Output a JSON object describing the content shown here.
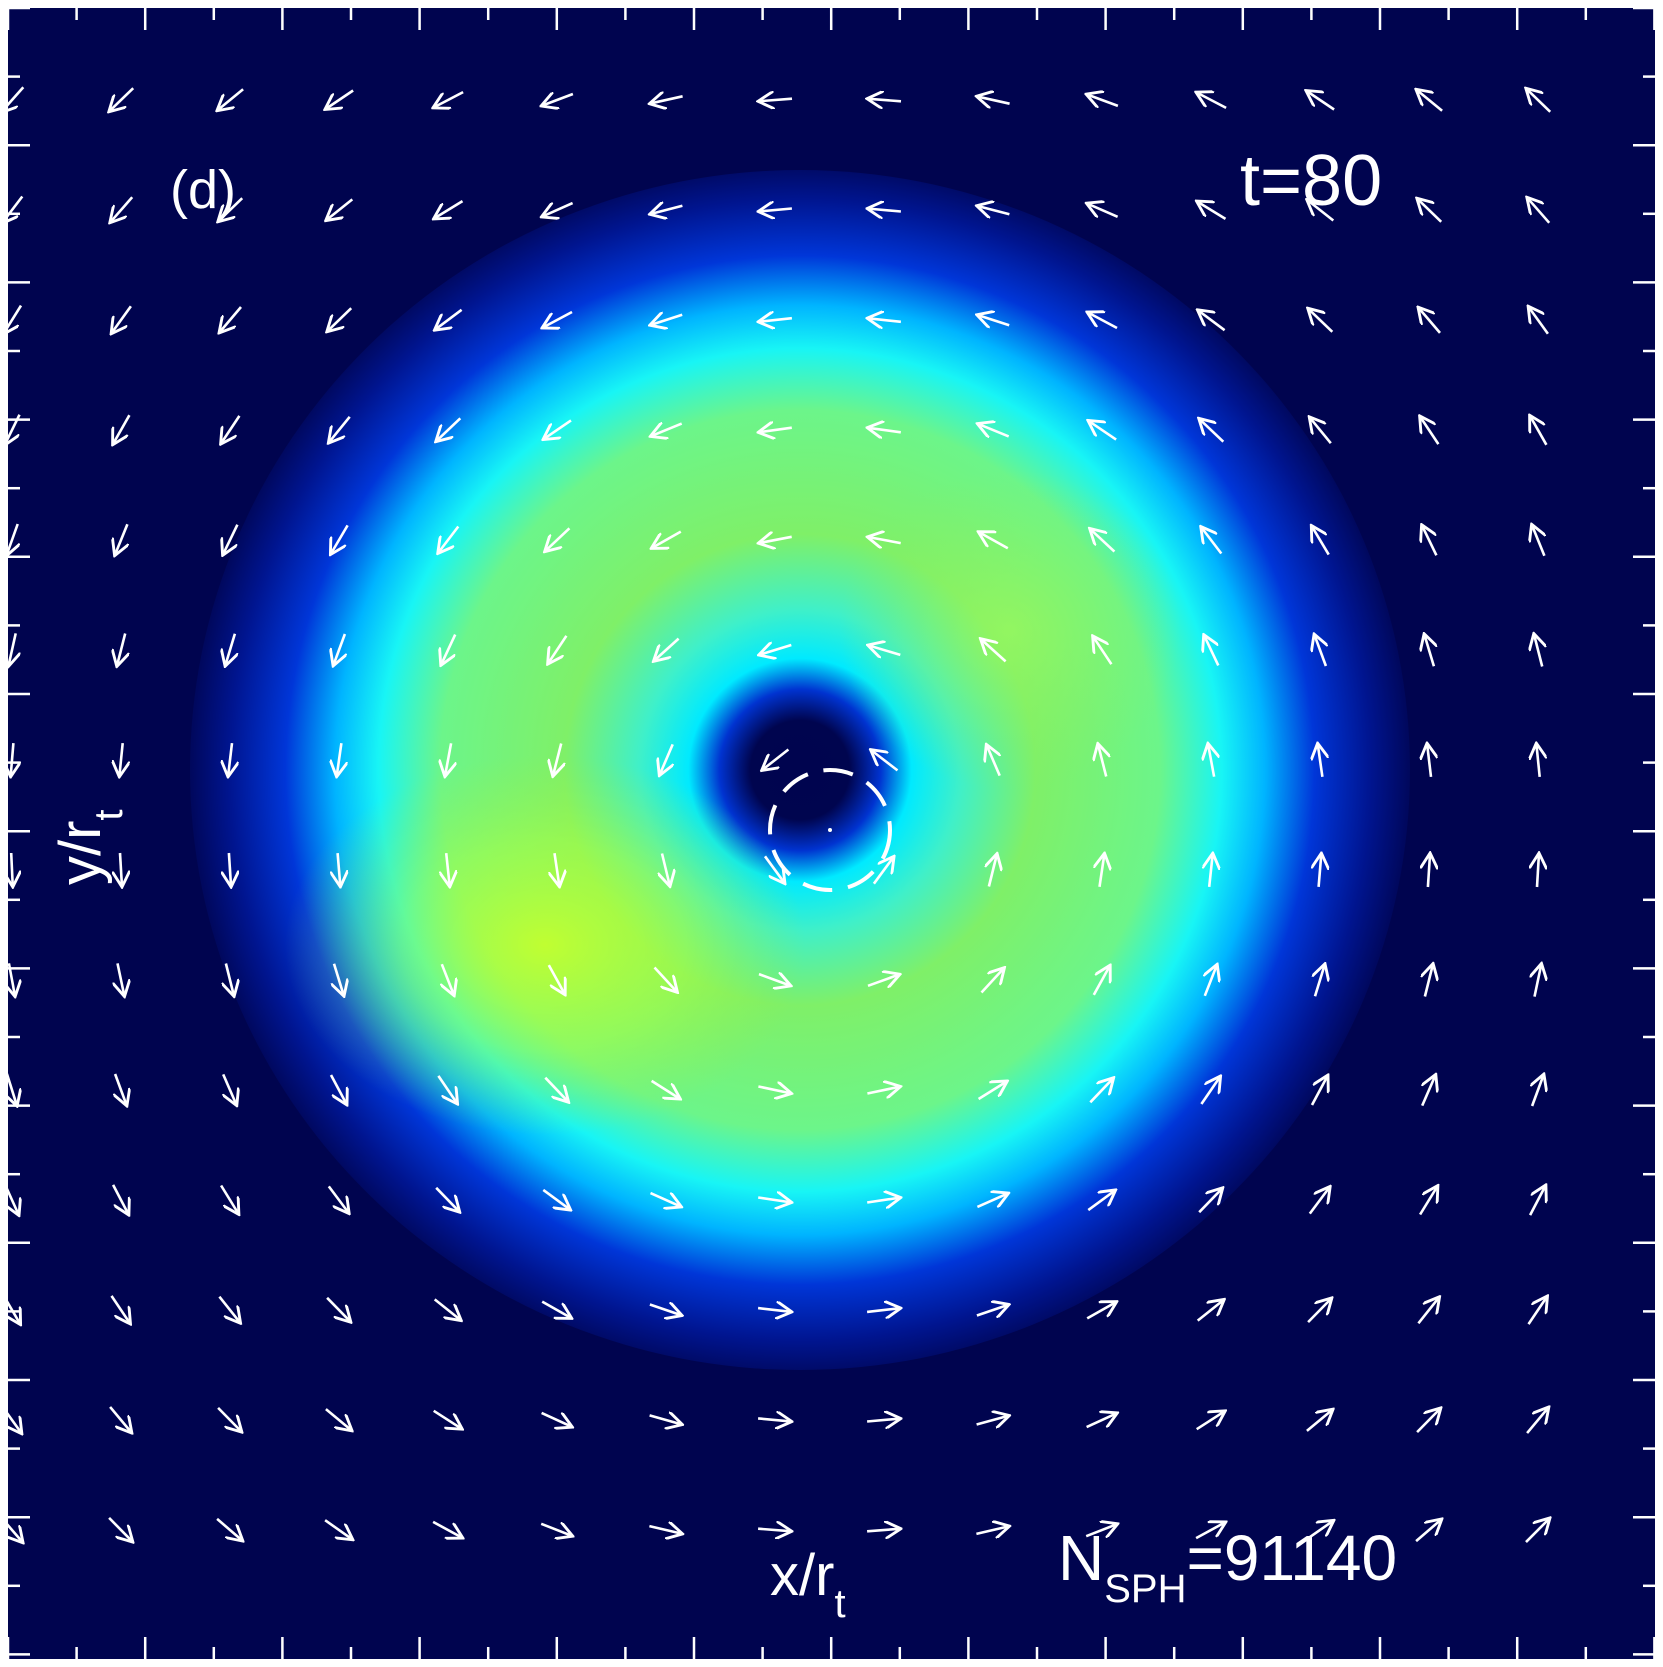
{
  "panel": {
    "label": "(d)",
    "time_label": "t=80",
    "n_sph": {
      "prefix": "N",
      "subscript": "SPH",
      "value": "=91140"
    }
  },
  "axes": {
    "x": {
      "text": "x/r",
      "subscript": "t"
    },
    "y": {
      "text": "y/r",
      "subscript": "t"
    }
  },
  "colors": {
    "background": "#00044f",
    "ring_outer": "#0033d6",
    "ring_mid": "#00ffff",
    "ring_inner": "#7ff066",
    "ring_peak": "#c4ff2d",
    "arrows": "#ffffff"
  },
  "vector_field": {
    "grid": "15 x 14",
    "sense": "counter-clockwise rotation about the central object"
  },
  "central_object": {
    "marker": "dashed-circle"
  }
}
